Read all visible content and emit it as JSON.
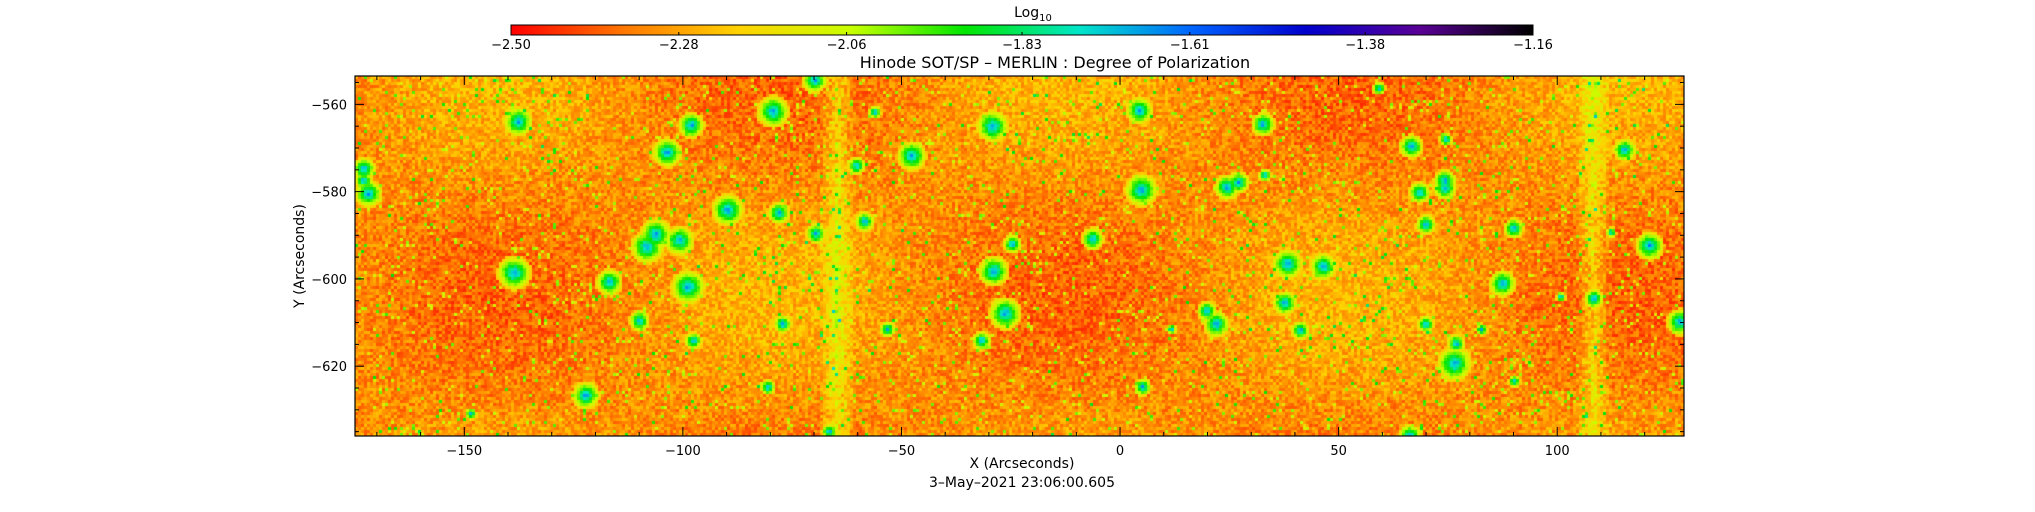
{
  "chart_data": {
    "type": "heatmap",
    "title": "Hinode SOT/SP – MERLIN : Degree of Polarization",
    "xlabel": "X (Arcseconds)",
    "ylabel": "Y (Arcseconds)",
    "timestamp": "3–May–2021 23:06:00.605",
    "xlim": [
      -175,
      129
    ],
    "ylim": [
      -636,
      -553.5
    ],
    "x_ticks": [
      -150,
      -100,
      -50,
      0,
      50,
      100
    ],
    "x_tick_labels": [
      "−150",
      "−100",
      "−50",
      "0",
      "50",
      "100"
    ],
    "y_ticks": [
      -560,
      -580,
      -600,
      -620
    ],
    "y_tick_labels": [
      "−560",
      "−580",
      "−600",
      "−620"
    ],
    "colorbar": {
      "title_base": "Log",
      "title_sub": "10",
      "range": [
        -2.5,
        -1.16
      ],
      "ticks": [
        -2.5,
        -2.28,
        -2.06,
        -1.83,
        -1.61,
        -1.38,
        -1.16
      ],
      "tick_labels": [
        "−2.50",
        "−2.28",
        "−2.06",
        "−1.83",
        "−1.61",
        "−1.38",
        "−1.16"
      ],
      "colors": [
        "#ff0000",
        "#ff7800",
        "#ffd200",
        "#c8ff00",
        "#00e600",
        "#00e6c8",
        "#0064ff",
        "#0000cc",
        "#5a0096",
        "#000000"
      ]
    },
    "vertical_bands_x": [
      -65,
      108
    ]
  }
}
